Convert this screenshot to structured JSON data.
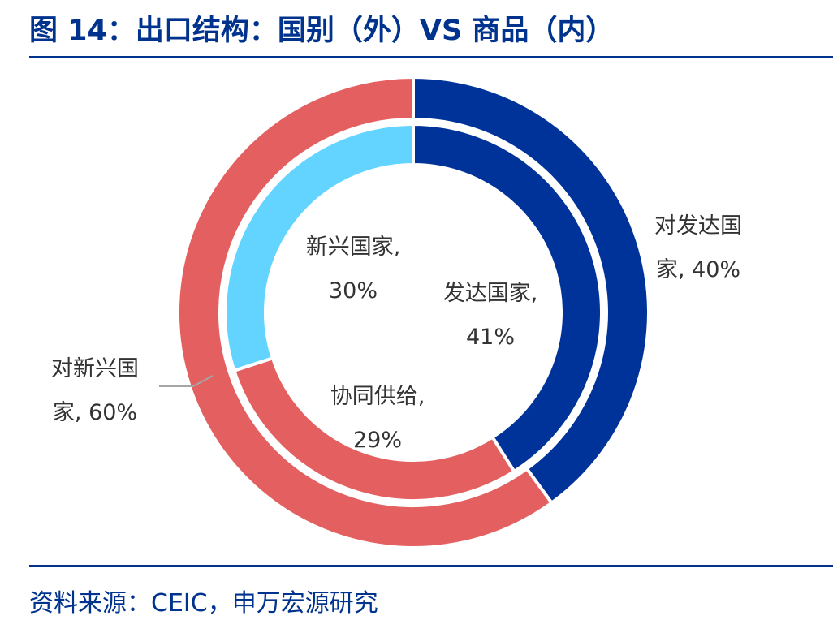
{
  "title": "图 14：出口结构：国别（外）VS 商品（内）",
  "source": "资料来源：CEIC，申万宏源研究",
  "colors": {
    "dark_blue": "#00339a",
    "salmon": "#e46060",
    "light_blue": "#62d4ff",
    "leader": "#a6a6a6",
    "separator": "#ffffff"
  },
  "chart_data": {
    "type": "donut",
    "series": [
      {
        "name": "国别",
        "ring": "outer",
        "slices": [
          {
            "label_lines": [
              "对发达国",
              "家, 40%"
            ],
            "value": 40,
            "color": "dark_blue"
          },
          {
            "label_lines": [
              "对新兴国",
              "家, 60%"
            ],
            "value": 60,
            "color": "salmon"
          }
        ]
      },
      {
        "name": "商品",
        "ring": "inner",
        "slices": [
          {
            "label_lines": [
              "发达国家,",
              "41%"
            ],
            "value": 41,
            "color": "dark_blue"
          },
          {
            "label_lines": [
              "协同供给,",
              "29%"
            ],
            "value": 29,
            "color": "salmon"
          },
          {
            "label_lines": [
              "新兴国家,",
              "30%"
            ],
            "value": 30,
            "color": "light_blue"
          }
        ]
      }
    ]
  }
}
